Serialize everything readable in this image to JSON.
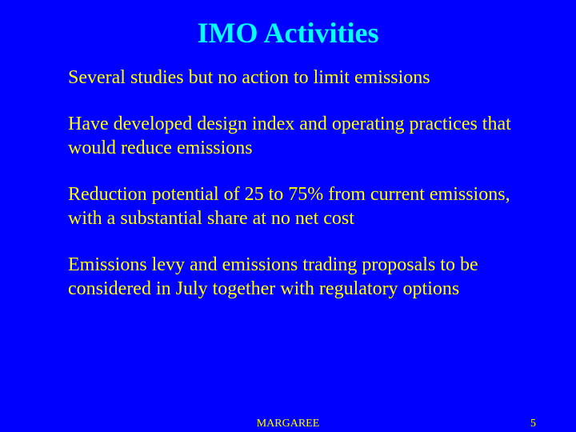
{
  "slide": {
    "title": "IMO Activities",
    "background_color": "#0000ff",
    "title_color": "#00ffff",
    "text_color": "#ffff00",
    "title_fontsize": 36,
    "body_fontsize": 24,
    "footer_fontsize": 14,
    "bullets": [
      "Several studies but no action to limit emissions",
      "Have developed design index and operating practices that would reduce emissions",
      "Reduction potential of 25 to 75% from current emissions, with a substantial share at no net cost",
      "Emissions levy and emissions trading proposals to be considered in July together with regulatory options"
    ],
    "footer_center": "MARGAREE",
    "page_number": "5"
  }
}
